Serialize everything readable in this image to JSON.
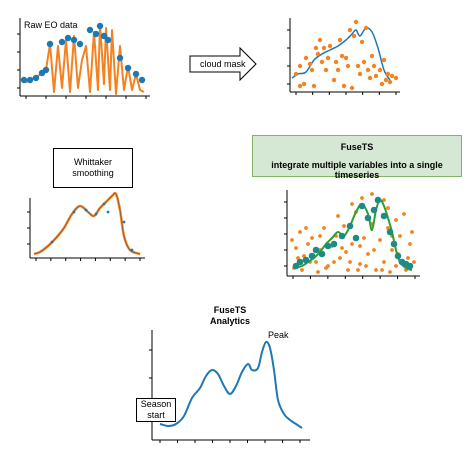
{
  "labels": {
    "raw_eo": "Raw EO data",
    "cloud_mask": "cloud mask",
    "whittaker": "Whittaker smoothing",
    "fusets_title": "FuseTS",
    "fusets_desc": "integrate multiple variables into a single timeseries",
    "analytics_title_1": "FuseTS",
    "analytics_title_2": "Analytics",
    "peak": "Peak",
    "season_1": "Season",
    "season_2": "start"
  },
  "colors": {
    "orange": "#f58220",
    "blue": "#1f77b4",
    "green": "#2ca02c",
    "teal": "#1e8a86",
    "green_box_fill": "#d5e8d4",
    "green_box_border": "#82b366"
  }
}
